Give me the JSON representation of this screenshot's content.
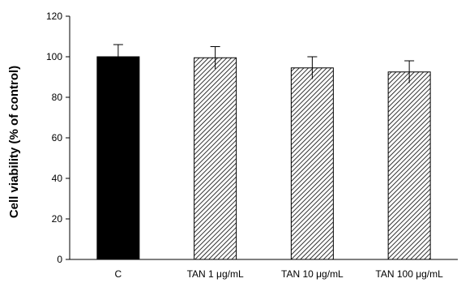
{
  "chart_data": {
    "type": "bar",
    "title": "",
    "xlabel": "",
    "ylabel": "Cell viability (% of control)",
    "ylim": [
      0,
      120
    ],
    "yticks": [
      0,
      20,
      40,
      60,
      80,
      100,
      120
    ],
    "categories": [
      "C",
      "TAN 1 μg/mL",
      "TAN 10 μg/mL",
      "TAN 100 μg/mL"
    ],
    "values": [
      100,
      99.5,
      94.5,
      92.5
    ],
    "errors": [
      6,
      5.5,
      5.5,
      5.5
    ],
    "fills": [
      "solid",
      "hatched",
      "hatched",
      "hatched"
    ],
    "colors": {
      "solid": "#000000",
      "hatch_line": "#000000",
      "axis": "#000000",
      "error_bar": "#000000",
      "background": "#ffffff"
    },
    "grid": false,
    "legend": "none"
  }
}
